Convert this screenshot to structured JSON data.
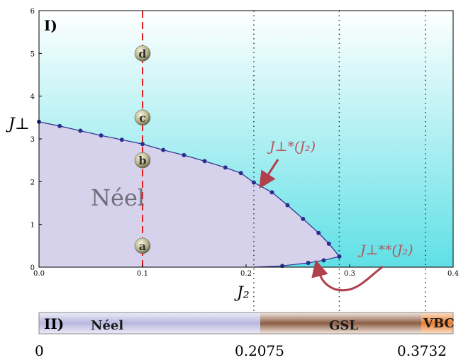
{
  "chart_data": [
    {
      "type": "area",
      "panel_label": "I)",
      "xlabel": "J₂",
      "ylabel": "J⊥",
      "xlim": [
        0,
        0.4
      ],
      "ylim": [
        0,
        6
      ],
      "x_ticks": [
        "0.0",
        "0.1",
        "0.2",
        "0.3",
        "0.4"
      ],
      "y_ticks": [
        "0",
        "1",
        "2",
        "3",
        "4",
        "5",
        "6"
      ],
      "region_label": "Néel",
      "upper_boundary": {
        "x": [
          0.0,
          0.02,
          0.04,
          0.06,
          0.08,
          0.1,
          0.12,
          0.14,
          0.16,
          0.18,
          0.195,
          0.2075,
          0.225,
          0.24,
          0.255,
          0.27,
          0.28,
          0.29
        ],
        "y": [
          3.4,
          3.3,
          3.19,
          3.08,
          2.98,
          2.88,
          2.74,
          2.62,
          2.48,
          2.33,
          2.2,
          1.98,
          1.75,
          1.45,
          1.13,
          0.8,
          0.55,
          0.25
        ]
      },
      "lower_boundary": {
        "x": [
          0.2075,
          0.235,
          0.26,
          0.275,
          0.29
        ],
        "y": [
          0.0,
          0.03,
          0.1,
          0.16,
          0.25
        ]
      },
      "vertical_line_x": 0.1,
      "dotted_lines_x": [
        0.2075,
        0.29,
        0.3732
      ],
      "points": [
        {
          "label": "a",
          "x": 0.1,
          "y": 0.5
        },
        {
          "label": "b",
          "x": 0.1,
          "y": 2.5
        },
        {
          "label": "c",
          "x": 0.1,
          "y": 3.5
        },
        {
          "label": "d",
          "x": 0.1,
          "y": 5.0
        }
      ],
      "annotations": [
        {
          "text": "J⊥*(J₂)",
          "points_to": [
            0.2075,
            1.98
          ]
        },
        {
          "text": "J⊥**(J₂)",
          "points_to": [
            0.26,
            0.1
          ]
        }
      ]
    },
    {
      "type": "bar",
      "panel_label": "II)",
      "segments": [
        {
          "name": "Néel",
          "from": 0,
          "to": 0.2075,
          "color": "#b9b7df"
        },
        {
          "name": "GSL",
          "from": 0.2075,
          "to": 0.3732,
          "color": "#8b5e45"
        },
        {
          "name": "VBC",
          "from": 0.3732,
          "to": 0.4,
          "color": "#e87d2e"
        }
      ],
      "tick_labels": [
        "0",
        "0.2075",
        "0.3732"
      ]
    }
  ],
  "colors": {
    "neel_region": "#d6d2ec",
    "background_top": "#ffffff",
    "background_bottom": "#5fe0e6",
    "boundary": "#2d2d8f",
    "dashed_line": "#e01f1f",
    "arrow": "#b0404b"
  }
}
